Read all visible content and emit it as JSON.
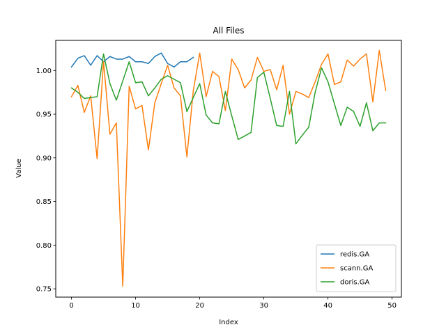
{
  "chart_data": {
    "type": "line",
    "title": "All Files",
    "xlabel": "Index",
    "ylabel": "Value",
    "xlim": [
      -2.45,
      51.45
    ],
    "ylim": [
      0.7405,
      1.0345
    ],
    "xticks": [
      0,
      10,
      20,
      30,
      40,
      50
    ],
    "yticks": [
      0.75,
      0.8,
      0.85,
      0.9,
      0.95,
      1.0
    ],
    "xtick_labels": [
      "0",
      "10",
      "20",
      "30",
      "40",
      "50"
    ],
    "ytick_labels": [
      "0.75",
      "0.80",
      "0.85",
      "0.90",
      "0.95",
      "1.00"
    ],
    "grid": false,
    "legend_position": "lower-right",
    "series": [
      {
        "name": "redis.GA",
        "color": "#1f77b4",
        "x": [
          0,
          1,
          2,
          3,
          4,
          5,
          6,
          7,
          8,
          9,
          10,
          11,
          12,
          13,
          14,
          15,
          16,
          17,
          18,
          19
        ],
        "values": [
          1.004,
          1.014,
          1.017,
          1.006,
          1.017,
          1.01,
          1.016,
          1.013,
          1.013,
          1.016,
          1.01,
          1.01,
          1.008,
          1.016,
          1.02,
          1.008,
          1.004,
          1.01,
          1.01,
          1.015
        ]
      },
      {
        "name": "scann.GA",
        "color": "#ff7f0e",
        "x": [
          0,
          1,
          2,
          3,
          4,
          5,
          6,
          7,
          8,
          9,
          10,
          11,
          12,
          13,
          14,
          15,
          16,
          17,
          18,
          19,
          20,
          21,
          22,
          23,
          24,
          25,
          26,
          27,
          28,
          29,
          30,
          31,
          32,
          33,
          34,
          35,
          36,
          37,
          38,
          39,
          40,
          41,
          42,
          43,
          44,
          45,
          46,
          47,
          48,
          49
        ],
        "values": [
          0.97,
          0.983,
          0.952,
          0.971,
          0.899,
          1.01,
          0.927,
          0.94,
          0.753,
          0.982,
          0.956,
          0.96,
          0.909,
          0.963,
          0.985,
          1.006,
          0.98,
          0.971,
          0.901,
          0.977,
          1.02,
          0.97,
          0.999,
          0.993,
          0.954,
          1.013,
          1.001,
          0.98,
          0.989,
          1.015,
          0.999,
          1.001,
          0.978,
          1.006,
          0.95,
          0.976,
          0.973,
          0.969,
          0.987,
          1.007,
          1.019,
          0.984,
          0.987,
          1.012,
          1.005,
          1.013,
          1.019,
          0.964,
          1.023,
          0.977
        ]
      },
      {
        "name": "doris.GA",
        "color": "#2ca02c",
        "x": [
          0,
          1,
          2,
          3,
          4,
          5,
          6,
          7,
          8,
          9,
          10,
          11,
          12,
          13,
          14,
          15,
          16,
          17,
          18,
          19,
          20,
          21,
          22,
          23,
          24,
          25,
          26,
          27,
          28,
          29,
          30,
          31,
          32,
          33,
          34,
          35,
          36,
          37,
          38,
          39,
          40,
          41,
          42,
          43,
          44,
          45,
          46,
          47,
          48,
          49
        ],
        "values": [
          0.98,
          0.975,
          0.968,
          0.969,
          0.97,
          1.019,
          0.985,
          0.966,
          0.988,
          1.01,
          0.986,
          0.987,
          0.971,
          0.98,
          0.99,
          0.994,
          0.99,
          0.986,
          0.953,
          0.969,
          0.985,
          0.949,
          0.94,
          0.939,
          0.976,
          0.948,
          0.921,
          0.925,
          0.929,
          0.992,
          0.998,
          0.968,
          0.937,
          0.936,
          0.976,
          0.916,
          0.926,
          0.935,
          0.975,
          1.003,
          0.987,
          0.962,
          0.937,
          0.958,
          0.953,
          0.936,
          0.963,
          0.931,
          0.94,
          0.94
        ]
      }
    ]
  }
}
